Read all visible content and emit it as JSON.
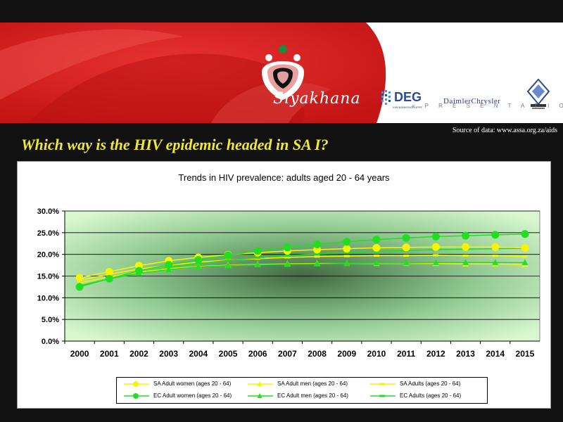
{
  "banner": {
    "logo_text": "Siyakhana",
    "presentation_label": "« P R E S E N T A T I O N »",
    "sponsor_deg": "DEG",
    "sponsor_deg_sub": "KfW BANKENGRUPPE",
    "sponsor_daimler": "DaimlerChrysler"
  },
  "header": {
    "source_text": "Source of data: www.assa.org.za/aids",
    "headline": "Which way is the HIV epidemic headed in SA I?"
  },
  "colors": {
    "yellow": "#f5f500",
    "green": "#22dd22",
    "headline": "#f2ea2a",
    "red": "#d42020"
  },
  "chart_data": {
    "type": "line",
    "title": "Trends in HIV prevalence: adults aged 20 - 64 years",
    "x": [
      "2000",
      "2001",
      "2002",
      "2003",
      "2004",
      "2005",
      "2006",
      "2007",
      "2008",
      "2009",
      "2010",
      "2011",
      "2012",
      "2013",
      "2014",
      "2015"
    ],
    "ylim": [
      0,
      30
    ],
    "yticks": [
      "0.0%",
      "5.0%",
      "10.0%",
      "15.0%",
      "20.0%",
      "25.0%",
      "30.0%"
    ],
    "ytick_values": [
      0,
      5,
      10,
      15,
      20,
      25,
      30
    ],
    "grid": true,
    "legend_position": "bottom",
    "series": [
      {
        "name": "SA Adult women (ages 20 - 64)",
        "color": "#f5f500",
        "marker": "circle",
        "values": [
          14.6,
          16.0,
          17.4,
          18.5,
          19.3,
          19.9,
          20.4,
          20.8,
          21.1,
          21.3,
          21.5,
          21.6,
          21.7,
          21.7,
          21.7,
          21.5
        ]
      },
      {
        "name": "SA Adult men (ages 20 - 64)",
        "color": "#f5f500",
        "marker": "triangle",
        "values": [
          13.4,
          14.8,
          15.9,
          16.7,
          17.2,
          17.5,
          17.7,
          17.8,
          17.9,
          17.9,
          17.9,
          17.9,
          17.9,
          17.8,
          17.8,
          17.6
        ]
      },
      {
        "name": "SA Adults (ages 20 - 64)",
        "color": "#f5f500",
        "marker": "dash",
        "values": [
          14.0,
          15.4,
          16.6,
          17.5,
          18.2,
          18.7,
          19.0,
          19.3,
          19.5,
          19.6,
          19.7,
          19.7,
          19.8,
          19.7,
          19.7,
          19.5
        ]
      },
      {
        "name": "EC Adult women (ages 20 - 64)",
        "color": "#22dd22",
        "marker": "circle",
        "values": [
          12.5,
          14.4,
          16.2,
          17.6,
          18.7,
          19.8,
          20.8,
          21.6,
          22.3,
          22.9,
          23.4,
          23.8,
          24.1,
          24.3,
          24.5,
          24.7
        ]
      },
      {
        "name": "EC Adult men (ages 20 - 64)",
        "color": "#22dd22",
        "marker": "triangle",
        "values": [
          12.8,
          14.4,
          15.6,
          16.5,
          17.1,
          17.4,
          17.6,
          17.7,
          17.8,
          17.9,
          18.0,
          18.0,
          18.1,
          18.1,
          18.1,
          18.1
        ]
      },
      {
        "name": "EC Adults (ages 20 - 64)",
        "color": "#22dd22",
        "marker": "dash",
        "values": [
          12.7,
          14.4,
          15.9,
          17.0,
          17.9,
          18.6,
          19.2,
          19.7,
          20.1,
          20.4,
          20.7,
          20.9,
          21.1,
          21.2,
          21.3,
          21.4
        ]
      }
    ]
  }
}
